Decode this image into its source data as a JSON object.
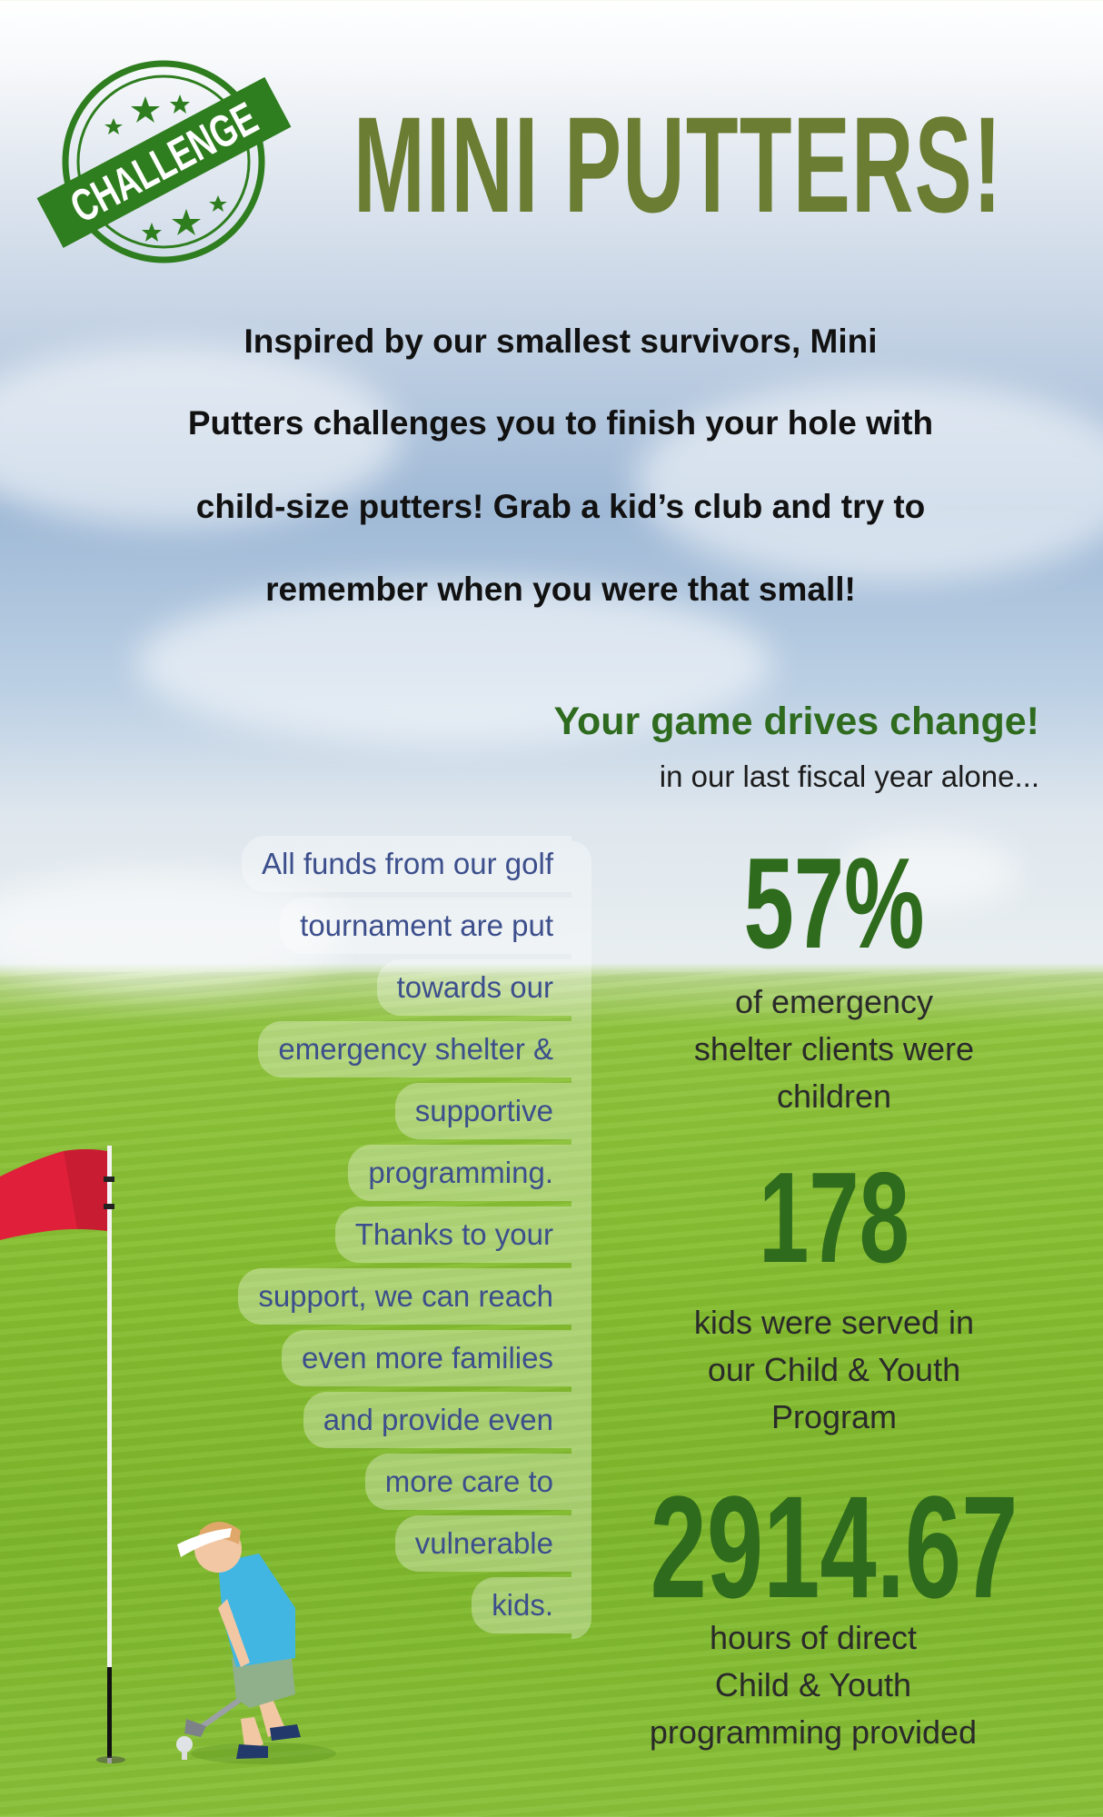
{
  "badge": {
    "text": "CHALLENGE",
    "color": "#2e7d1e"
  },
  "title": "MINI PUTTERS!",
  "intro_lines": [
    "Inspired by our smallest survivors, Mini",
    "Putters challenges you to finish your hole with",
    "child-size putters! Grab a kid’s club and try to",
    "remember when you were that small!"
  ],
  "impact": {
    "heading": "Your game drives change!",
    "subheading": "in our last fiscal year alone..."
  },
  "funds_lines": [
    "All funds from our golf",
    "tournament are put",
    "towards our",
    "emergency shelter &",
    "supportive",
    "programming.",
    "Thanks to your",
    "support, we can reach",
    "even more families",
    "and provide even",
    "more care to",
    "vulnerable",
    "kids."
  ],
  "stats": [
    {
      "value": "57%",
      "lines": [
        "of emergency",
        "shelter clients were",
        "children"
      ]
    },
    {
      "value": "178",
      "lines": [
        "kids were served in",
        "our Child & Youth",
        "Program"
      ]
    },
    {
      "value": "2914.67",
      "lines": [
        "hours of direct",
        "Child & Youth",
        "programming provided"
      ]
    }
  ],
  "colors": {
    "title": "#6b7d32",
    "accent_green": "#2e6b1c",
    "funds_text": "#3c4f8c",
    "flag": "#e0203a"
  }
}
